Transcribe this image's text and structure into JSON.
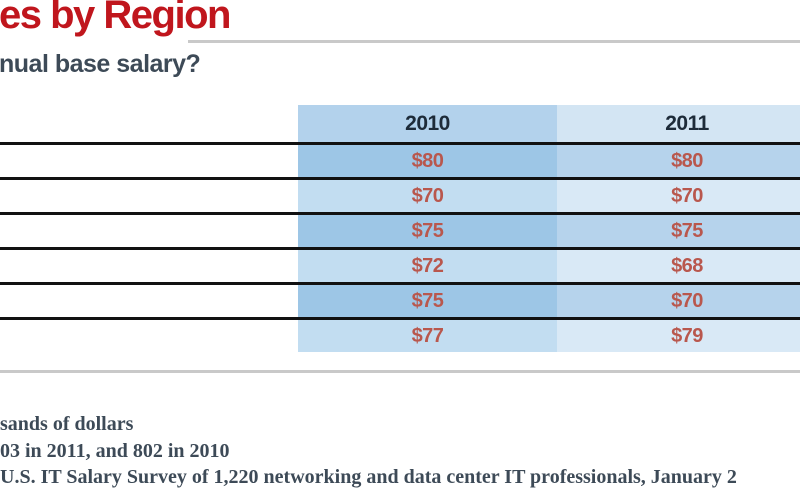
{
  "header": {
    "title_visible": "es by Region",
    "subtitle_visible": "nual base salary?"
  },
  "table": {
    "column_headers": [
      "2010",
      "2011"
    ],
    "rows": [
      {
        "values": [
          "$80",
          "$80"
        ]
      },
      {
        "values": [
          "$70",
          "$70"
        ]
      },
      {
        "values": [
          "$75",
          "$75"
        ]
      },
      {
        "values": [
          "$72",
          "$68"
        ]
      },
      {
        "values": [
          "$75",
          "$70"
        ]
      },
      {
        "values": [
          "$77",
          "$79"
        ]
      }
    ]
  },
  "footnotes": {
    "line1": "sands of dollars",
    "line2": "03 in 2011, and 802 in 2010",
    "line3": "U.S. IT Salary Survey of 1,220 networking and data center IT professionals, January 2"
  },
  "colors": {
    "title_red": "#c0161d",
    "slate": "#3d4a57",
    "navy": "#1d2b39",
    "value_red": "#b9574d",
    "rule_gray": "#c9c9c9",
    "line_black": "#111111",
    "col2010_header": "#b3d2ec",
    "col2010_dark": "#9dc6e6",
    "col2010_light": "#c2ddf1",
    "col2011_header": "#d3e5f3",
    "col2011_dark": "#b6d3ec",
    "col2011_light": "#d9e9f6"
  },
  "chart_data": {
    "type": "table",
    "title": "es by Region (title cropped at left edge)",
    "question": "nual base salary? (question cropped at left edge)",
    "columns": [
      "2010",
      "2011"
    ],
    "row_labels": "cropped out of frame (left side of image)",
    "series": [
      {
        "name": "2010",
        "values": [
          80,
          70,
          75,
          72,
          75,
          77
        ]
      },
      {
        "name": "2011",
        "values": [
          80,
          70,
          75,
          68,
          70,
          79
        ]
      }
    ],
    "units": "thousands of US dollars",
    "notes": [
      "sands of dollars",
      "03 in 2011, and 802 in 2010",
      "U.S. IT Salary Survey of 1,220 networking and data center IT professionals, January 2"
    ]
  }
}
